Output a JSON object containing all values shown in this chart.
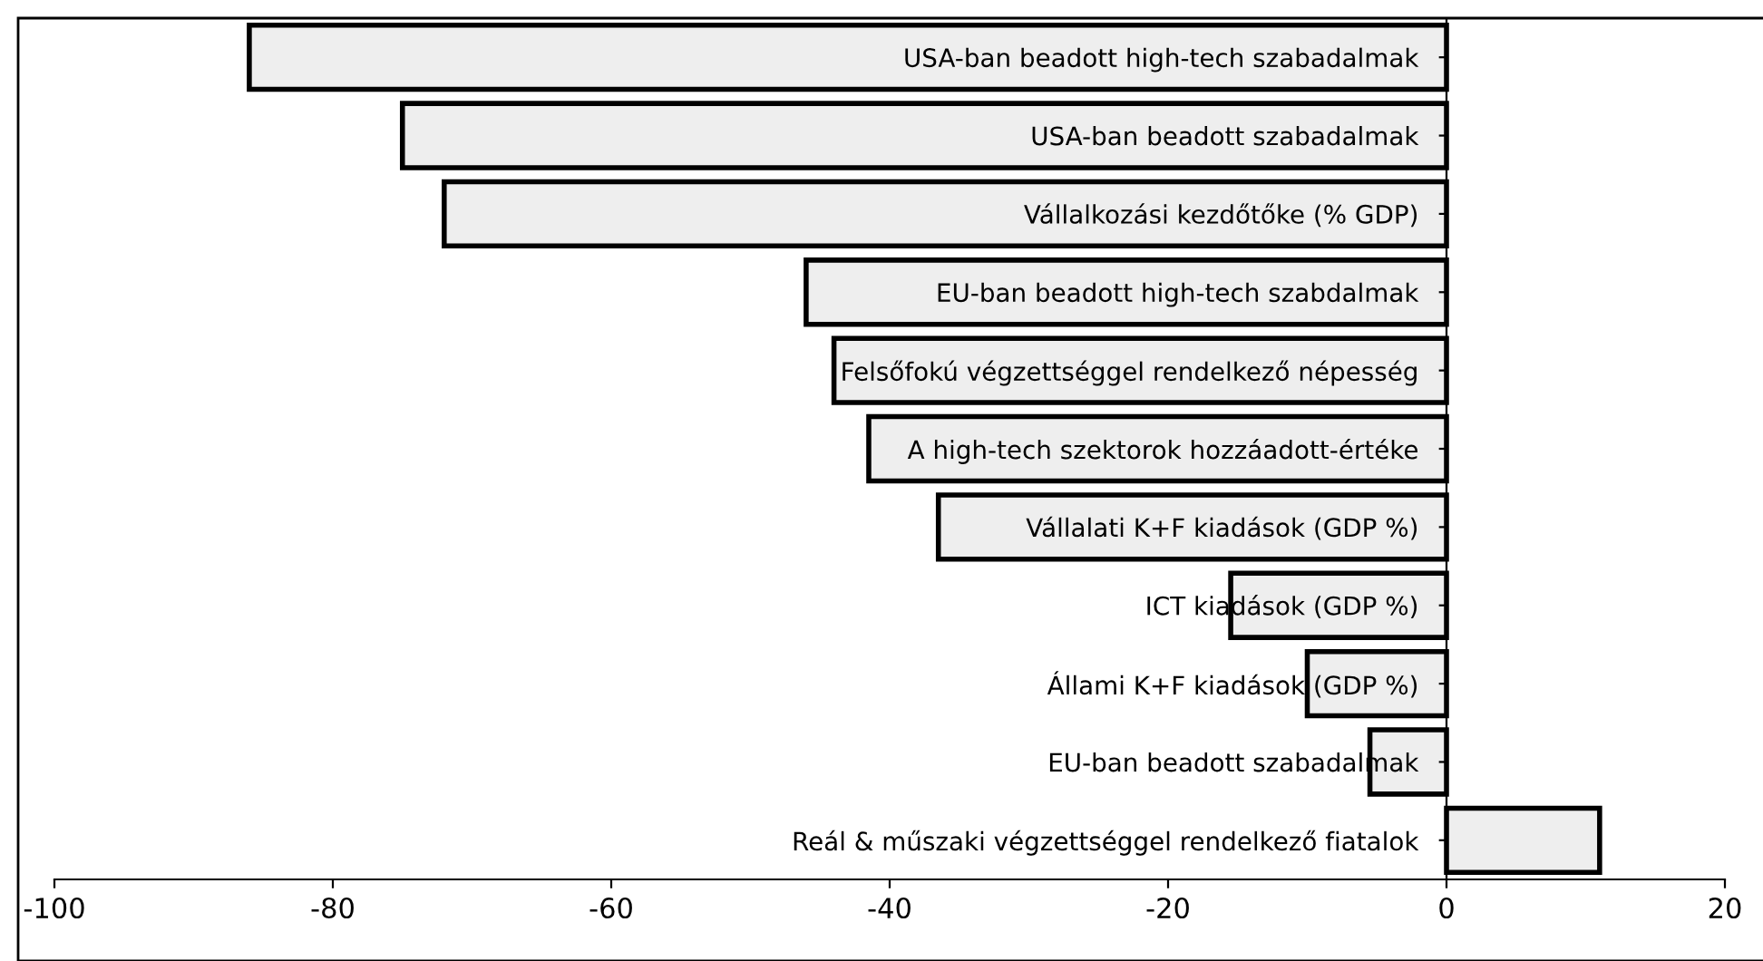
{
  "chart_data": {
    "type": "bar",
    "orientation": "horizontal",
    "categories": [
      "USA-ban beadott high-tech szabadalmak",
      "USA-ban beadott szabadalmak",
      "Vállalkozási kezdőtőke (% GDP)",
      "EU-ban beadott high-tech szabdalmak",
      "Felsőfokú végzettséggel rendelkező népesség",
      "A high-tech szektorok hozzáadott-értéke",
      "Vállalati K+F kiadások (GDP %)",
      "ICT kiadások (GDP %)",
      "Állami K+F kiadások (GDP %)",
      "EU-ban beadott szabadalmak",
      "Reál & műszaki végzettséggel rendelkező fiatalok"
    ],
    "values": [
      -86,
      -75,
      -72,
      -46,
      -44,
      -41.5,
      -36.5,
      -15.5,
      -10,
      -5.5,
      11
    ],
    "color": "#eeeeee",
    "xlim": [
      -100,
      20
    ],
    "xticks": [
      -100,
      -80,
      -60,
      -40,
      -20,
      0,
      20
    ],
    "grid": false,
    "legend": false
  }
}
